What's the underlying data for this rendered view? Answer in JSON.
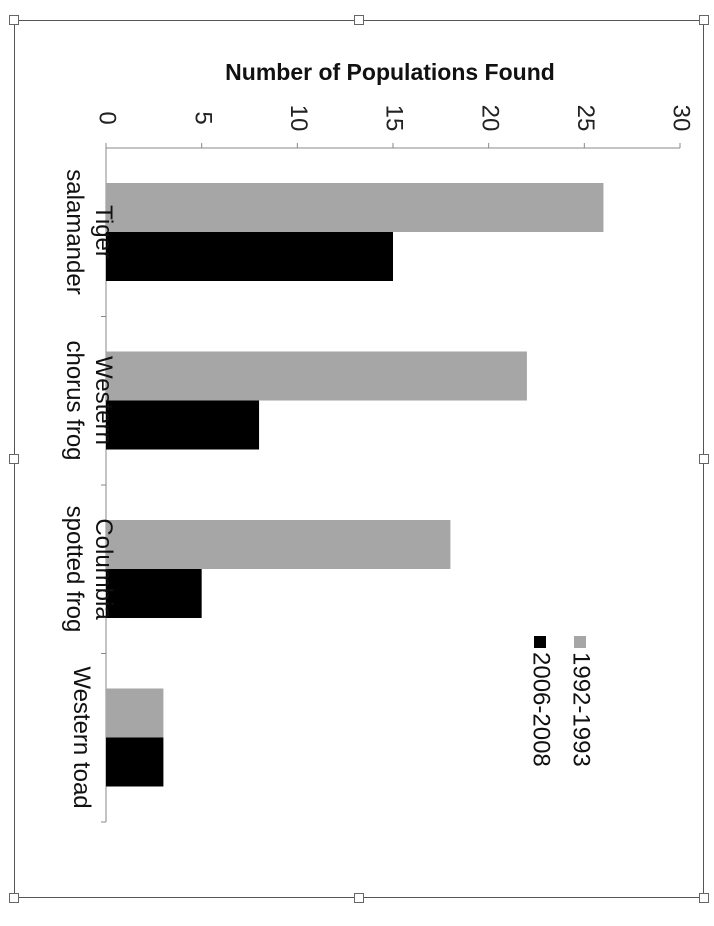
{
  "chart_data": {
    "type": "bar",
    "orientation": "horizontal",
    "rotated": "90deg-clockwise",
    "title": "",
    "xlabel": "",
    "ylabel": "Number of Populations Found",
    "ylim": [
      0,
      30
    ],
    "yticks": [
      "0",
      "5",
      "10",
      "15",
      "20",
      "25",
      "30"
    ],
    "categories": [
      [
        "Tiger",
        "salamander"
      ],
      [
        "Western",
        "chorus frog"
      ],
      [
        "Columbia",
        "spotted frog"
      ],
      [
        "Western toad"
      ]
    ],
    "series": [
      {
        "name": "1992-1993",
        "color": "#a6a6a6",
        "values": [
          26,
          22,
          18,
          3
        ]
      },
      {
        "name": "2006-2008",
        "color": "#000000",
        "values": [
          15,
          8,
          5,
          3
        ]
      }
    ],
    "legend_position": "right",
    "grid": false
  }
}
